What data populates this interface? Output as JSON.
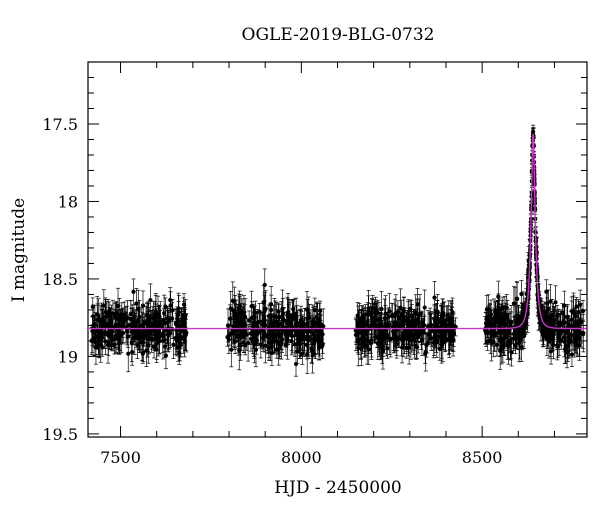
{
  "chart_data": {
    "type": "scatter",
    "title": "OGLE-2019-BLG-0732",
    "xlabel": "HJD - 2450000",
    "ylabel": "I magnitude",
    "xlim": [
      7410,
      8790
    ],
    "ylim": [
      19.52,
      17.1
    ],
    "y_inverted": true,
    "x_ticks": [
      7500,
      8000,
      8500
    ],
    "y_ticks": [
      "17.5",
      "18",
      "18.5",
      "19",
      "19.5"
    ],
    "grid": false,
    "colors": {
      "data": "#000000",
      "model": "#cc33cc"
    },
    "series": [
      {
        "kind": "photometry_points_with_errorbars",
        "baseline_mag": 18.82,
        "scatter_mag": 0.07,
        "typical_error_mag": 0.09,
        "observing_seasons": [
          [
            7420,
            7685
          ],
          [
            7795,
            8062
          ],
          [
            8150,
            8428
          ],
          [
            8508,
            8780
          ]
        ],
        "sampled_points": [
          {
            "x": 7440,
            "y": 18.82
          },
          {
            "x": 7470,
            "y": 18.78
          },
          {
            "x": 7500,
            "y": 18.85
          },
          {
            "x": 7530,
            "y": 18.8
          },
          {
            "x": 7560,
            "y": 18.86
          },
          {
            "x": 7590,
            "y": 18.79
          },
          {
            "x": 7620,
            "y": 18.83
          },
          {
            "x": 7650,
            "y": 18.76
          },
          {
            "x": 7680,
            "y": 18.9
          },
          {
            "x": 7810,
            "y": 18.84
          },
          {
            "x": 7850,
            "y": 18.8
          },
          {
            "x": 7900,
            "y": 18.82
          },
          {
            "x": 7950,
            "y": 18.78
          },
          {
            "x": 8000,
            "y": 18.85
          },
          {
            "x": 8050,
            "y": 18.7
          },
          {
            "x": 8160,
            "y": 18.83
          },
          {
            "x": 8200,
            "y": 18.79
          },
          {
            "x": 8250,
            "y": 18.82
          },
          {
            "x": 8300,
            "y": 18.81
          },
          {
            "x": 8350,
            "y": 18.85
          },
          {
            "x": 8400,
            "y": 18.8
          },
          {
            "x": 8520,
            "y": 18.84
          },
          {
            "x": 8560,
            "y": 18.75
          },
          {
            "x": 8600,
            "y": 18.55
          },
          {
            "x": 8620,
            "y": 18.3
          },
          {
            "x": 8630,
            "y": 18.05
          },
          {
            "x": 8638,
            "y": 17.75
          },
          {
            "x": 8641,
            "y": 17.55
          },
          {
            "x": 8644,
            "y": 17.6
          },
          {
            "x": 8650,
            "y": 17.95
          },
          {
            "x": 8660,
            "y": 18.25
          },
          {
            "x": 8680,
            "y": 18.55
          },
          {
            "x": 8720,
            "y": 18.75
          },
          {
            "x": 8760,
            "y": 18.82
          }
        ]
      },
      {
        "kind": "model_curve",
        "baseline_mag": 18.82,
        "peak_mag": 17.55,
        "t0": 8641,
        "tE": 12,
        "xrange": [
          7410,
          8790
        ]
      }
    ]
  }
}
